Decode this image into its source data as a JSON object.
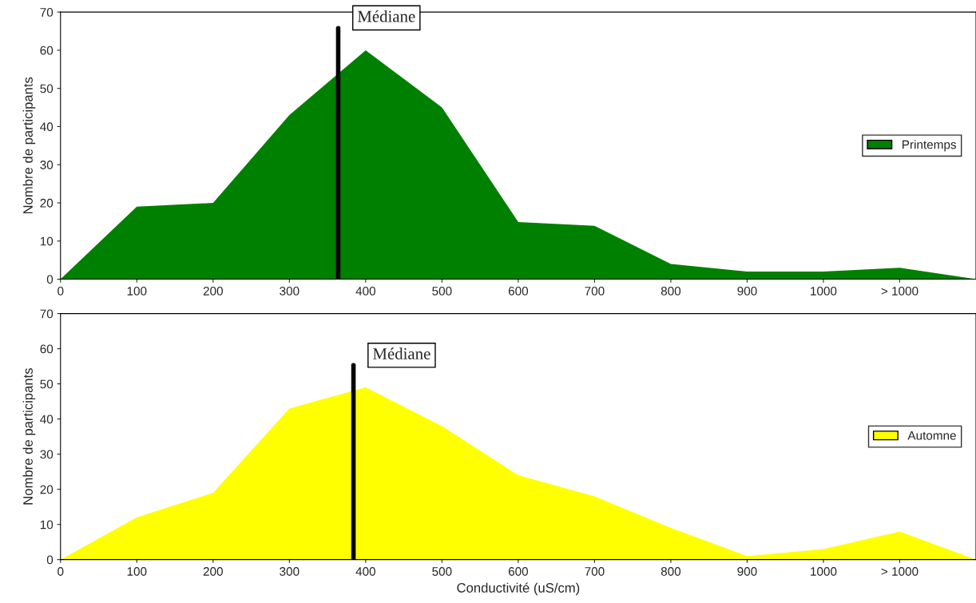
{
  "chart_data": [
    {
      "type": "area",
      "x": [
        0,
        100,
        200,
        300,
        400,
        500,
        600,
        700,
        800,
        900,
        1000,
        1100,
        1200
      ],
      "xlim": [
        0,
        1200
      ],
      "xticks": [
        0,
        100,
        200,
        300,
        400,
        500,
        600,
        700,
        800,
        900,
        1000,
        {
          "value": 1100,
          "label": "> 1000"
        }
      ],
      "ylim": [
        0,
        70
      ],
      "yticks": [
        0,
        10,
        20,
        30,
        40,
        50,
        60,
        70
      ],
      "ylabel": "Nombre de participants",
      "legend": "right",
      "grid": false,
      "series": [
        {
          "name": "Printemps",
          "color": "#008000",
          "values": [
            0,
            19,
            20,
            43,
            60,
            45,
            15,
            14,
            4,
            2,
            2,
            3,
            0
          ]
        }
      ],
      "ref_lines": [
        {
          "axis": "x",
          "value": 364,
          "label": "Médiane",
          "color": "#000000"
        }
      ]
    },
    {
      "type": "area",
      "x": [
        0,
        100,
        200,
        300,
        400,
        500,
        600,
        700,
        800,
        900,
        1000,
        1100,
        1200
      ],
      "xlim": [
        0,
        1200
      ],
      "xticks": [
        0,
        100,
        200,
        300,
        400,
        500,
        600,
        700,
        800,
        900,
        1000,
        {
          "value": 1100,
          "label": "> 1000"
        }
      ],
      "ylim": [
        0,
        70
      ],
      "yticks": [
        0,
        10,
        20,
        30,
        40,
        50,
        60,
        70
      ],
      "ylabel": "Nombre de participants",
      "xlabel": "Conductivité (uS/cm)",
      "legend": "right",
      "grid": false,
      "series": [
        {
          "name": "Automne",
          "color": "#ffff00",
          "values": [
            0,
            12,
            19,
            43,
            49,
            38,
            24,
            18,
            9,
            1,
            3,
            8,
            0
          ]
        }
      ],
      "ref_lines": [
        {
          "axis": "x",
          "value": 384,
          "label": "Médiane",
          "color": "#000000"
        }
      ]
    }
  ]
}
